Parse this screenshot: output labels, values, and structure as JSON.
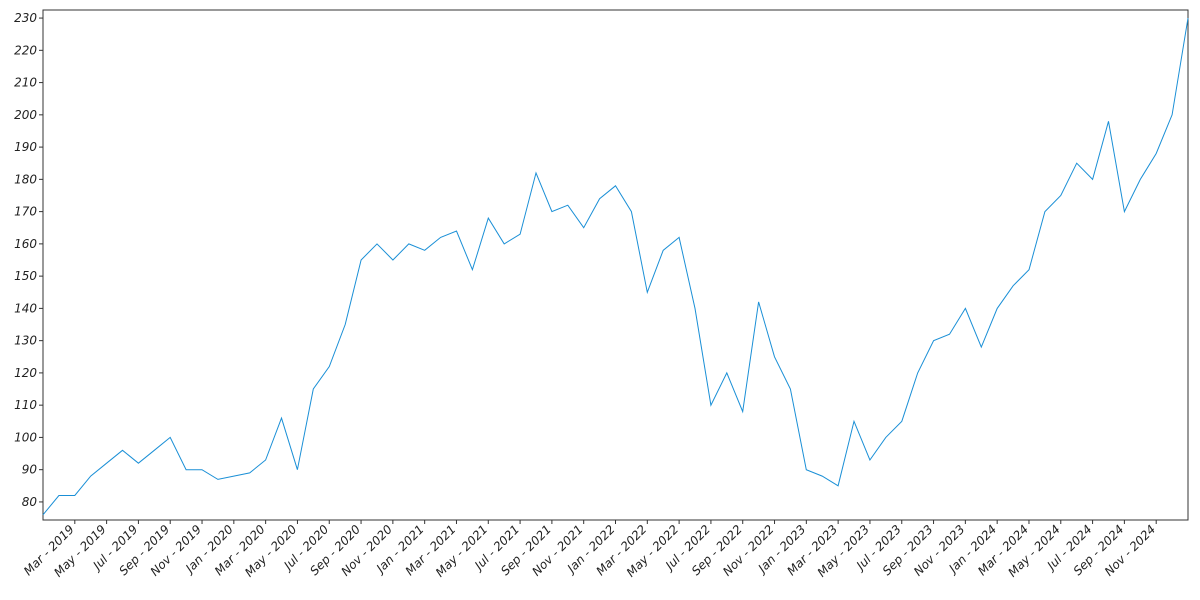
{
  "chart_data": {
    "type": "line",
    "x": [
      "2019-01",
      "2019-02",
      "2019-03",
      "2019-04",
      "2019-05",
      "2019-06",
      "2019-07",
      "2019-08",
      "2019-09",
      "2019-10",
      "2019-11",
      "2019-12",
      "2020-01",
      "2020-02",
      "2020-03",
      "2020-04",
      "2020-05",
      "2020-06",
      "2020-07",
      "2020-08",
      "2020-09",
      "2020-10",
      "2020-11",
      "2020-12",
      "2021-01",
      "2021-02",
      "2021-03",
      "2021-04",
      "2021-05",
      "2021-06",
      "2021-07",
      "2021-08",
      "2021-09",
      "2021-10",
      "2021-11",
      "2021-12",
      "2022-01",
      "2022-02",
      "2022-03",
      "2022-04",
      "2022-05",
      "2022-06",
      "2022-07",
      "2022-08",
      "2022-09",
      "2022-10",
      "2022-11",
      "2022-12",
      "2023-01",
      "2023-02",
      "2023-03",
      "2023-04",
      "2023-05",
      "2023-06",
      "2023-07",
      "2023-08",
      "2023-09",
      "2023-10",
      "2023-11",
      "2023-12",
      "2024-01",
      "2024-02",
      "2024-03",
      "2024-04",
      "2024-05",
      "2024-06",
      "2024-07",
      "2024-08",
      "2024-09",
      "2024-10",
      "2024-11",
      "2024-12",
      "2025-01"
    ],
    "series": [
      {
        "color": "#1a8fd6",
        "values": [
          76,
          82,
          82,
          88,
          92,
          96,
          92,
          96,
          100,
          90,
          90,
          87,
          88,
          89,
          93,
          106,
          90,
          115,
          122,
          135,
          155,
          160,
          155,
          160,
          158,
          162,
          164,
          152,
          168,
          160,
          163,
          182,
          170,
          172,
          165,
          174,
          178,
          170,
          145,
          158,
          162,
          140,
          110,
          120,
          108,
          142,
          125,
          115,
          90,
          88,
          85,
          105,
          93,
          100,
          105,
          120,
          130,
          132,
          140,
          128,
          140,
          147,
          152,
          170,
          175,
          185,
          180,
          198,
          170,
          180,
          188,
          200,
          230
        ]
      }
    ],
    "xlim": [
      "2019-01",
      "2025-01"
    ],
    "xticks": [
      {
        "value": "2019-03",
        "label": "Mar - 2019"
      },
      {
        "value": "2019-05",
        "label": "May - 2019"
      },
      {
        "value": "2019-07",
        "label": "Jul - 2019"
      },
      {
        "value": "2019-09",
        "label": "Sep - 2019"
      },
      {
        "value": "2019-11",
        "label": "Nov - 2019"
      },
      {
        "value": "2020-01",
        "label": "Jan - 2020"
      },
      {
        "value": "2020-03",
        "label": "Mar - 2020"
      },
      {
        "value": "2020-05",
        "label": "May - 2020"
      },
      {
        "value": "2020-07",
        "label": "Jul - 2020"
      },
      {
        "value": "2020-09",
        "label": "Sep - 2020"
      },
      {
        "value": "2020-11",
        "label": "Nov - 2020"
      },
      {
        "value": "2021-01",
        "label": "Jan - 2021"
      },
      {
        "value": "2021-03",
        "label": "Mar - 2021"
      },
      {
        "value": "2021-05",
        "label": "May - 2021"
      },
      {
        "value": "2021-07",
        "label": "Jul - 2021"
      },
      {
        "value": "2021-09",
        "label": "Sep - 2021"
      },
      {
        "value": "2021-11",
        "label": "Nov - 2021"
      },
      {
        "value": "2022-01",
        "label": "Jan - 2022"
      },
      {
        "value": "2022-03",
        "label": "Mar - 2022"
      },
      {
        "value": "2022-05",
        "label": "May - 2022"
      },
      {
        "value": "2022-07",
        "label": "Jul - 2022"
      },
      {
        "value": "2022-09",
        "label": "Sep - 2022"
      },
      {
        "value": "2022-11",
        "label": "Nov - 2022"
      },
      {
        "value": "2023-01",
        "label": "Jan - 2023"
      },
      {
        "value": "2023-03",
        "label": "Mar - 2023"
      },
      {
        "value": "2023-05",
        "label": "May - 2023"
      },
      {
        "value": "2023-07",
        "label": "Jul - 2023"
      },
      {
        "value": "2023-09",
        "label": "Sep - 2023"
      },
      {
        "value": "2023-11",
        "label": "Nov - 2023"
      },
      {
        "value": "2024-01",
        "label": "Jan - 2024"
      },
      {
        "value": "2024-03",
        "label": "Mar - 2024"
      },
      {
        "value": "2024-05",
        "label": "May - 2024"
      },
      {
        "value": "2024-07",
        "label": "Jul - 2024"
      },
      {
        "value": "2024-09",
        "label": "Sep - 2024"
      },
      {
        "value": "2024-11",
        "label": "Nov - 2024"
      }
    ],
    "ylim": [
      74.4,
      232.5
    ],
    "yticks": [
      80,
      90,
      100,
      110,
      120,
      130,
      140,
      150,
      160,
      170,
      180,
      190,
      200,
      210,
      220,
      230
    ],
    "grid": false
  }
}
